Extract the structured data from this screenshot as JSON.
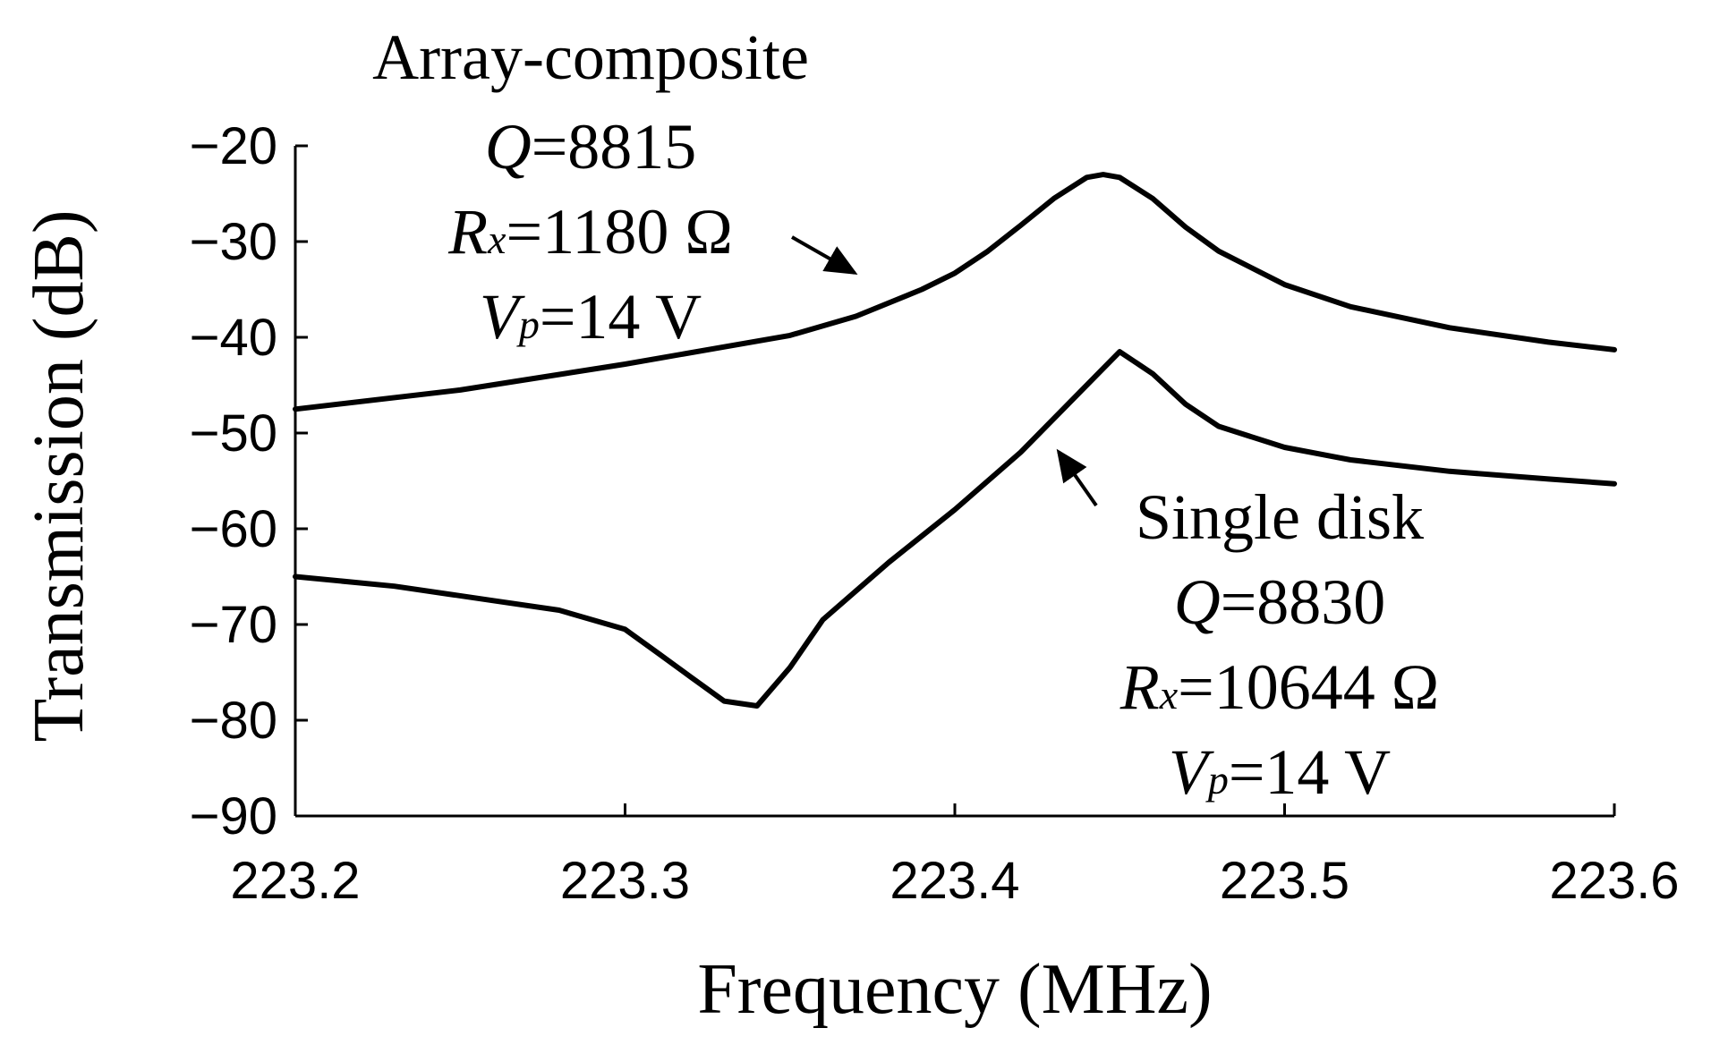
{
  "chart_data": {
    "type": "line",
    "title": "",
    "xlabel": "Frequency (MHz)",
    "ylabel": "Transmission (dB)",
    "xlim": [
      223.2,
      223.6
    ],
    "ylim": [
      -90,
      -20
    ],
    "xticks": [
      223.2,
      223.3,
      223.4,
      223.5,
      223.6
    ],
    "xtick_labels": [
      "223.2",
      "223.3",
      "223.4",
      "223.5",
      "223.6"
    ],
    "yticks": [
      -20,
      -30,
      -40,
      -50,
      -60,
      -70,
      -80,
      -90
    ],
    "ytick_labels": [
      "−20",
      "−30",
      "−40",
      "−50",
      "−60",
      "−70",
      "−80",
      "−90"
    ],
    "grid": false,
    "series": [
      {
        "name": "Array-composite",
        "color": "#000000",
        "x": [
          223.2,
          223.25,
          223.3,
          223.35,
          223.37,
          223.39,
          223.4,
          223.41,
          223.42,
          223.43,
          223.44,
          223.445,
          223.45,
          223.46,
          223.47,
          223.48,
          223.5,
          223.52,
          223.55,
          223.58,
          223.6
        ],
        "y": [
          -47.5,
          -45.5,
          -42.8,
          -39.8,
          -37.8,
          -35,
          -33.3,
          -31,
          -28.3,
          -25.5,
          -23.3,
          -23,
          -23.3,
          -25.5,
          -28.5,
          -31,
          -34.5,
          -36.8,
          -39,
          -40.5,
          -41.3
        ]
      },
      {
        "name": "Single disk",
        "color": "#000000",
        "x": [
          223.2,
          223.23,
          223.26,
          223.28,
          223.3,
          223.31,
          223.32,
          223.33,
          223.34,
          223.35,
          223.36,
          223.38,
          223.4,
          223.42,
          223.44,
          223.45,
          223.46,
          223.47,
          223.48,
          223.5,
          223.52,
          223.55,
          223.58,
          223.6
        ],
        "y": [
          -65,
          -66,
          -67.5,
          -68.5,
          -70.5,
          -73,
          -75.5,
          -78,
          -78.5,
          -74.5,
          -69.5,
          -63.5,
          -58,
          -52,
          -45,
          -41.5,
          -43.8,
          -47,
          -49.3,
          -51.5,
          -52.8,
          -54,
          -54.8,
          -55.3
        ]
      }
    ],
    "annotations": {
      "array": {
        "name": "Array-composite",
        "q_symbol": "Q",
        "q_value": "=8815",
        "r_symbol": "R",
        "r_sub": "x",
        "r_value": "=1180 Ω",
        "v_symbol": "V",
        "v_sub": "p",
        "v_value": "=14 V"
      },
      "single": {
        "name": "Single disk",
        "q_symbol": "Q",
        "q_value": "=8830",
        "r_symbol": "R",
        "r_sub": "x",
        "r_value": "=10644 Ω",
        "v_symbol": "V",
        "v_sub": "p",
        "v_value": "=14 V"
      }
    }
  }
}
